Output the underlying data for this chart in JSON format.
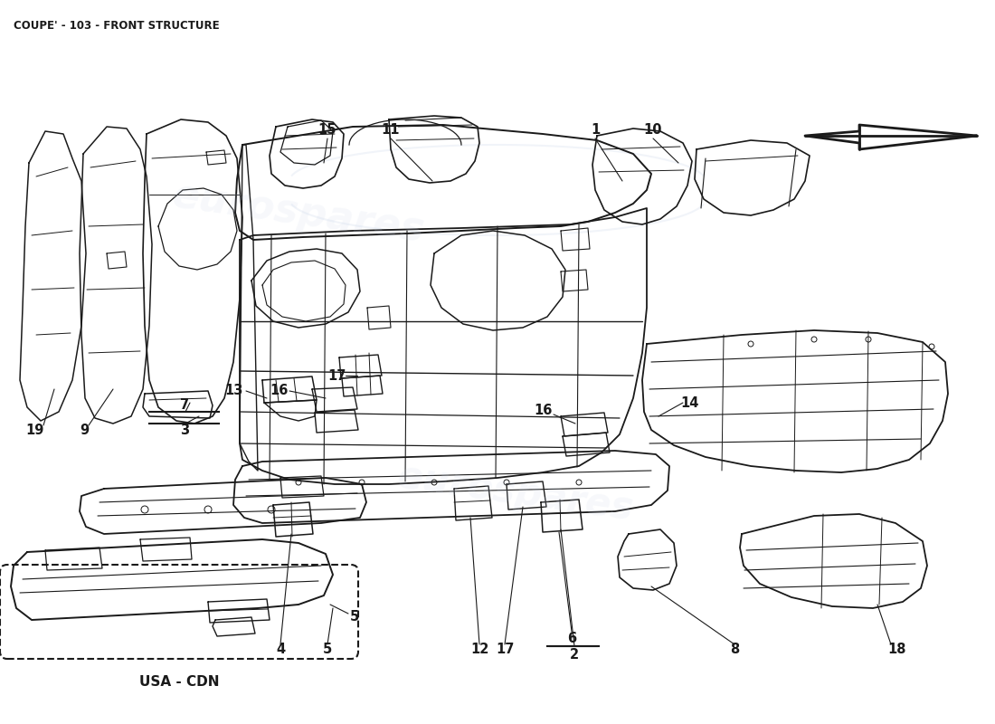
{
  "title": "COUPE' - 103 - FRONT STRUCTURE",
  "background_color": "#ffffff",
  "line_color": "#1a1a1a",
  "watermark_color": "#c8d4e8",
  "watermark_text": "eurospares",
  "usa_cdn_label": "USA - CDN",
  "fig_width": 11.0,
  "fig_height": 8.0,
  "dpi": 100,
  "title_fontsize": 8.5,
  "label_fontsize": 10.5
}
